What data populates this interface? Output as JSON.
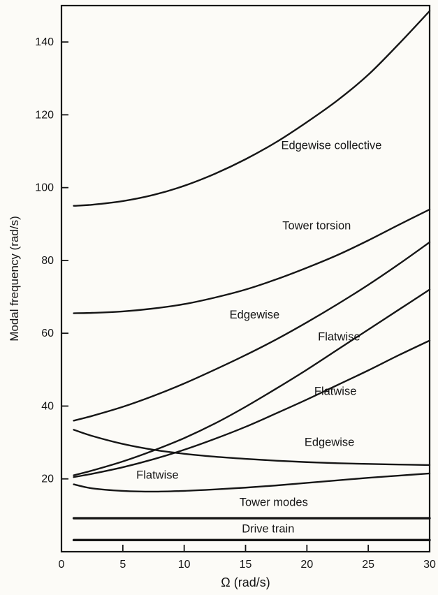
{
  "figure": {
    "background": "#fcfbf7",
    "ink": "#161616"
  },
  "chart_data": {
    "type": "line",
    "title": "",
    "xlabel": "Ω (rad/s)",
    "ylabel": "Modal frequency (rad/s)",
    "xlim": [
      0,
      30
    ],
    "ylim": [
      0,
      150
    ],
    "x_ticks": [
      0,
      5,
      10,
      15,
      20,
      25,
      30
    ],
    "y_ticks": [
      20,
      40,
      60,
      80,
      100,
      120,
      140
    ],
    "grid": false,
    "legend_position": "none-inline-labels",
    "x": [
      1,
      2.5,
      5,
      7.5,
      10,
      12.5,
      15,
      17.5,
      20,
      22.5,
      25,
      27.5,
      30
    ],
    "series": [
      {
        "name": "Edgewise collective",
        "stroke_width": 2.4,
        "values": [
          95,
          95.3,
          96.3,
          98,
          100.5,
          103.8,
          107.8,
          112.5,
          118,
          124,
          131,
          139.5,
          148.5
        ]
      },
      {
        "name": "Tower torsion",
        "stroke_width": 2.4,
        "values": [
          65.5,
          65.6,
          66,
          66.8,
          68,
          69.8,
          72,
          74.8,
          78,
          81.5,
          85.5,
          89.8,
          94
        ]
      },
      {
        "name": "Edgewise",
        "stroke_width": 2.4,
        "values": [
          36,
          37.3,
          39.8,
          42.8,
          46.2,
          50,
          54,
          58.3,
          63,
          68,
          73.3,
          79,
          85
        ]
      },
      {
        "name": "Flatwise",
        "stroke_width": 2.4,
        "values": [
          21,
          22.3,
          24.8,
          27.8,
          31.2,
          35.2,
          39.8,
          44.8,
          50,
          55.5,
          61,
          66.5,
          72
        ]
      },
      {
        "name": "Flatwise",
        "stroke_width": 2.4,
        "values": [
          20.5,
          21.4,
          23.2,
          25.4,
          28,
          31,
          34.3,
          38,
          41.8,
          45.8,
          49.8,
          54,
          58
        ]
      },
      {
        "name": "Edgewise",
        "stroke_width": 2.4,
        "values": [
          33.5,
          31.8,
          29.6,
          28,
          26.9,
          26.1,
          25.5,
          25,
          24.6,
          24.3,
          24.1,
          23.95,
          23.8
        ]
      },
      {
        "name": "Flatwise",
        "stroke_width": 2.4,
        "values": [
          18.5,
          17.4,
          16.7,
          16.5,
          16.7,
          17.1,
          17.6,
          18.2,
          18.9,
          19.6,
          20.3,
          20.9,
          21.5
        ]
      },
      {
        "name": "Tower modes",
        "stroke_width": 3.4,
        "values": [
          9.2,
          9.2,
          9.2,
          9.2,
          9.2,
          9.2,
          9.2,
          9.2,
          9.2,
          9.2,
          9.2,
          9.2,
          9.2
        ]
      },
      {
        "name": "Drive train",
        "stroke_width": 3.4,
        "values": [
          3.2,
          3.2,
          3.2,
          3.2,
          3.2,
          3.2,
          3.2,
          3.2,
          3.2,
          3.2,
          3.2,
          3.2,
          3.2
        ]
      }
    ],
    "annotations": [
      {
        "text": "Edgewise collective",
        "x": 17.9,
        "y": 111.5
      },
      {
        "text": "Tower torsion",
        "x": 18.0,
        "y": 89.5
      },
      {
        "text": "Edgewise",
        "x": 13.7,
        "y": 65
      },
      {
        "text": "Flatwise",
        "x": 20.9,
        "y": 59
      },
      {
        "text": "Flatwise",
        "x": 20.6,
        "y": 44
      },
      {
        "text": "Edgewise",
        "x": 19.8,
        "y": 30
      },
      {
        "text": "Flatwise",
        "x": 6.1,
        "y": 21
      },
      {
        "text": "Tower modes",
        "x": 14.5,
        "y": 13.5
      },
      {
        "text": "Drive train",
        "x": 14.7,
        "y": 6.2
      }
    ]
  }
}
